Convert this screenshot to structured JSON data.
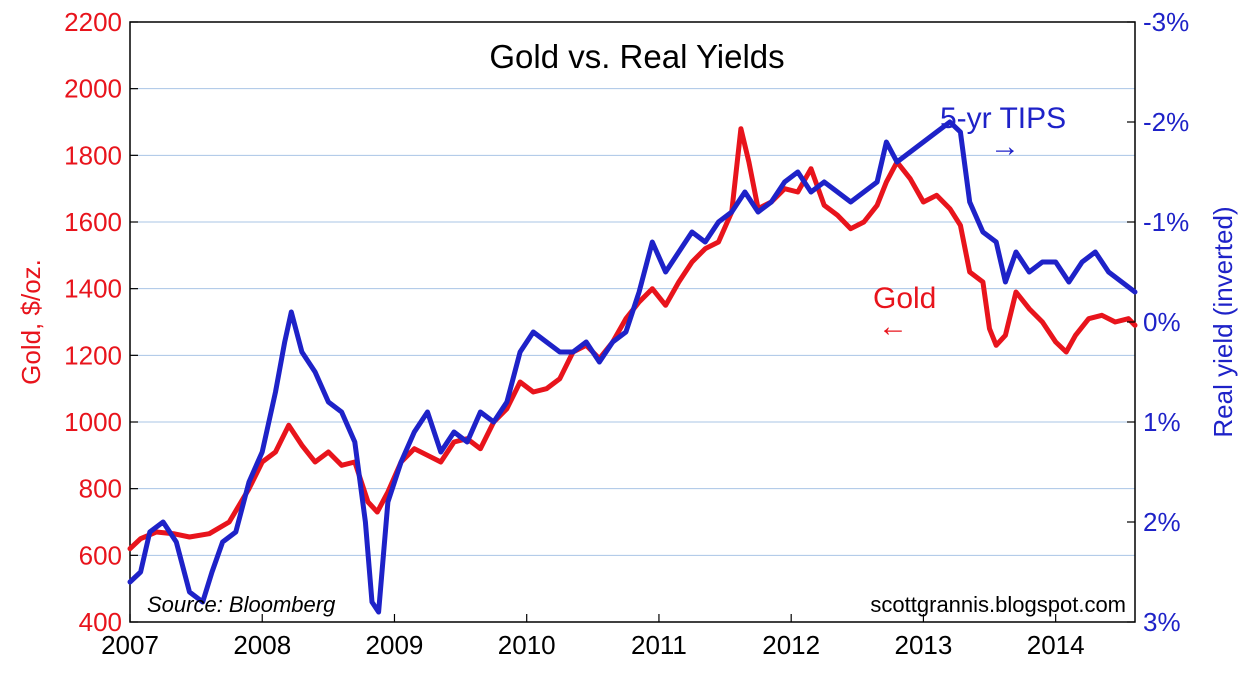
{
  "chart_data": {
    "type": "line",
    "title": "Gold vs. Real Yields",
    "ylabel_left": "Gold, $/oz.",
    "ylabel_right": "Real yield (inverted)",
    "x_ticks": [
      "2007",
      "2008",
      "2009",
      "2010",
      "2011",
      "2012",
      "2013",
      "2014"
    ],
    "xlim": [
      2007.0,
      2014.6
    ],
    "ylim_left": [
      400,
      2200
    ],
    "ylim_right_inverted": [
      3,
      -3
    ],
    "y_ticks_left": [
      "2200",
      "2000",
      "1800",
      "1600",
      "1400",
      "1200",
      "1000",
      "800",
      "600",
      "400"
    ],
    "y_ticks_right": [
      "-3%",
      "-2%",
      "-1%",
      "0%",
      "1%",
      "2%",
      "3%"
    ],
    "grid": "horizontal",
    "colors": {
      "gold": "#e8141c",
      "tips": "#1e22c8",
      "grid": "#a9c4e6"
    },
    "annotations": {
      "tips_label": "5-yr TIPS",
      "tips_arrow": "→",
      "gold_label": "Gold",
      "gold_arrow": "←",
      "source": "Source: Bloomberg",
      "credit": "scottgrannis.blogspot.com"
    },
    "series": [
      {
        "name": "Gold",
        "axis": "left",
        "x": [
          2007.0,
          2007.08,
          2007.2,
          2007.33,
          2007.45,
          2007.6,
          2007.75,
          2007.9,
          2008.0,
          2008.1,
          2008.2,
          2008.3,
          2008.4,
          2008.5,
          2008.6,
          2008.7,
          2008.8,
          2008.87,
          2008.95,
          2009.05,
          2009.15,
          2009.25,
          2009.35,
          2009.45,
          2009.55,
          2009.65,
          2009.75,
          2009.85,
          2009.95,
          2010.05,
          2010.15,
          2010.25,
          2010.35,
          2010.45,
          2010.55,
          2010.65,
          2010.75,
          2010.85,
          2010.95,
          2011.05,
          2011.15,
          2011.25,
          2011.35,
          2011.45,
          2011.55,
          2011.62,
          2011.68,
          2011.75,
          2011.85,
          2011.95,
          2012.05,
          2012.15,
          2012.25,
          2012.35,
          2012.45,
          2012.55,
          2012.65,
          2012.72,
          2012.8,
          2012.9,
          2013.0,
          2013.1,
          2013.2,
          2013.28,
          2013.35,
          2013.45,
          2013.5,
          2013.55,
          2013.62,
          2013.7,
          2013.8,
          2013.9,
          2014.0,
          2014.08,
          2014.15,
          2014.25,
          2014.35,
          2014.45,
          2014.55,
          2014.6
        ],
        "y": [
          620,
          650,
          670,
          665,
          655,
          665,
          700,
          800,
          880,
          910,
          990,
          930,
          880,
          910,
          870,
          880,
          760,
          730,
          790,
          880,
          920,
          900,
          880,
          940,
          950,
          920,
          1000,
          1040,
          1120,
          1090,
          1100,
          1130,
          1210,
          1230,
          1190,
          1240,
          1310,
          1360,
          1400,
          1350,
          1420,
          1480,
          1520,
          1540,
          1630,
          1880,
          1780,
          1640,
          1660,
          1700,
          1690,
          1760,
          1650,
          1620,
          1580,
          1600,
          1650,
          1720,
          1780,
          1730,
          1660,
          1680,
          1640,
          1590,
          1450,
          1420,
          1280,
          1230,
          1260,
          1390,
          1340,
          1300,
          1240,
          1210,
          1260,
          1310,
          1320,
          1300,
          1310,
          1290
        ]
      },
      {
        "name": "5-yr TIPS",
        "axis": "right",
        "x": [
          2007.0,
          2007.08,
          2007.15,
          2007.25,
          2007.35,
          2007.45,
          2007.55,
          2007.62,
          2007.7,
          2007.8,
          2007.9,
          2008.0,
          2008.1,
          2008.17,
          2008.22,
          2008.3,
          2008.4,
          2008.5,
          2008.6,
          2008.7,
          2008.78,
          2008.83,
          2008.88,
          2008.95,
          2009.05,
          2009.15,
          2009.25,
          2009.35,
          2009.45,
          2009.55,
          2009.65,
          2009.75,
          2009.85,
          2009.95,
          2010.05,
          2010.15,
          2010.25,
          2010.35,
          2010.45,
          2010.55,
          2010.65,
          2010.75,
          2010.85,
          2010.95,
          2011.05,
          2011.15,
          2011.25,
          2011.35,
          2011.45,
          2011.55,
          2011.65,
          2011.75,
          2011.85,
          2011.95,
          2012.05,
          2012.15,
          2012.25,
          2012.35,
          2012.45,
          2012.55,
          2012.65,
          2012.72,
          2012.8,
          2012.9,
          2013.0,
          2013.1,
          2013.2,
          2013.28,
          2013.35,
          2013.45,
          2013.55,
          2013.62,
          2013.7,
          2013.8,
          2013.9,
          2014.0,
          2014.1,
          2014.2,
          2014.3,
          2014.4,
          2014.5,
          2014.6
        ],
        "y": [
          2.6,
          2.5,
          2.1,
          2.0,
          2.2,
          2.7,
          2.8,
          2.5,
          2.2,
          2.1,
          1.6,
          1.3,
          0.7,
          0.2,
          -0.1,
          0.3,
          0.5,
          0.8,
          0.9,
          1.2,
          2.0,
          2.8,
          2.9,
          1.8,
          1.4,
          1.1,
          0.9,
          1.3,
          1.1,
          1.2,
          0.9,
          1.0,
          0.8,
          0.3,
          0.1,
          0.2,
          0.3,
          0.3,
          0.2,
          0.4,
          0.2,
          0.1,
          -0.3,
          -0.8,
          -0.5,
          -0.7,
          -0.9,
          -0.8,
          -1.0,
          -1.1,
          -1.3,
          -1.1,
          -1.2,
          -1.4,
          -1.5,
          -1.3,
          -1.4,
          -1.3,
          -1.2,
          -1.3,
          -1.4,
          -1.8,
          -1.6,
          -1.7,
          -1.8,
          -1.9,
          -2.0,
          -1.9,
          -1.2,
          -0.9,
          -0.8,
          -0.4,
          -0.7,
          -0.5,
          -0.6,
          -0.6,
          -0.4,
          -0.6,
          -0.7,
          -0.5,
          -0.4,
          -0.3
        ]
      }
    ]
  }
}
